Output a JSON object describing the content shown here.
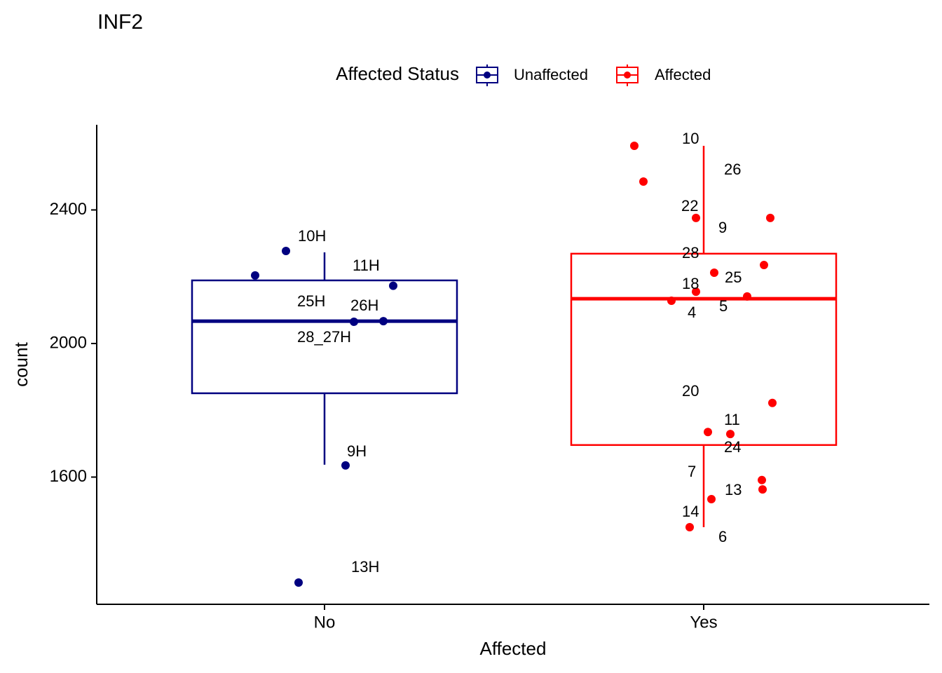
{
  "chart_data": {
    "type": "box",
    "title": "INF2",
    "x_label": "Affected",
    "y_label": "count",
    "legend_title": "Affected Status",
    "categories": [
      "No",
      "Yes"
    ],
    "ylim": [
      1219,
      2655
    ],
    "yticks": [
      1600,
      2000,
      2400
    ],
    "series": [
      {
        "name": "Unaffected",
        "color": "#000080",
        "whisker_low": 1637,
        "q1": 1851,
        "median": 2067,
        "q3": 2189,
        "whisker_high": 2273,
        "points": [
          2277,
          2173,
          2204,
          2065,
          2067,
          1635,
          1284
        ],
        "point_labels": [
          "10H",
          "11H",
          "25H",
          "26H",
          "28_27H",
          "9H",
          "13H"
        ]
      },
      {
        "name": "Affected",
        "color": "#ff0000",
        "whisker_low": 1450,
        "q1": 1696,
        "median": 2134,
        "q3": 2269,
        "whisker_high": 2592,
        "points": [
          2592,
          2485,
          2376,
          2376,
          2235,
          2212,
          2155,
          2141,
          2128,
          1822,
          1735,
          1729,
          1591,
          1534,
          1450,
          1563
        ],
        "point_labels": [
          "10",
          "26",
          "22",
          "9",
          "28",
          "25",
          "18",
          "5",
          "4",
          "20",
          "11",
          "24",
          "7",
          "13",
          "14",
          "6"
        ]
      }
    ]
  }
}
